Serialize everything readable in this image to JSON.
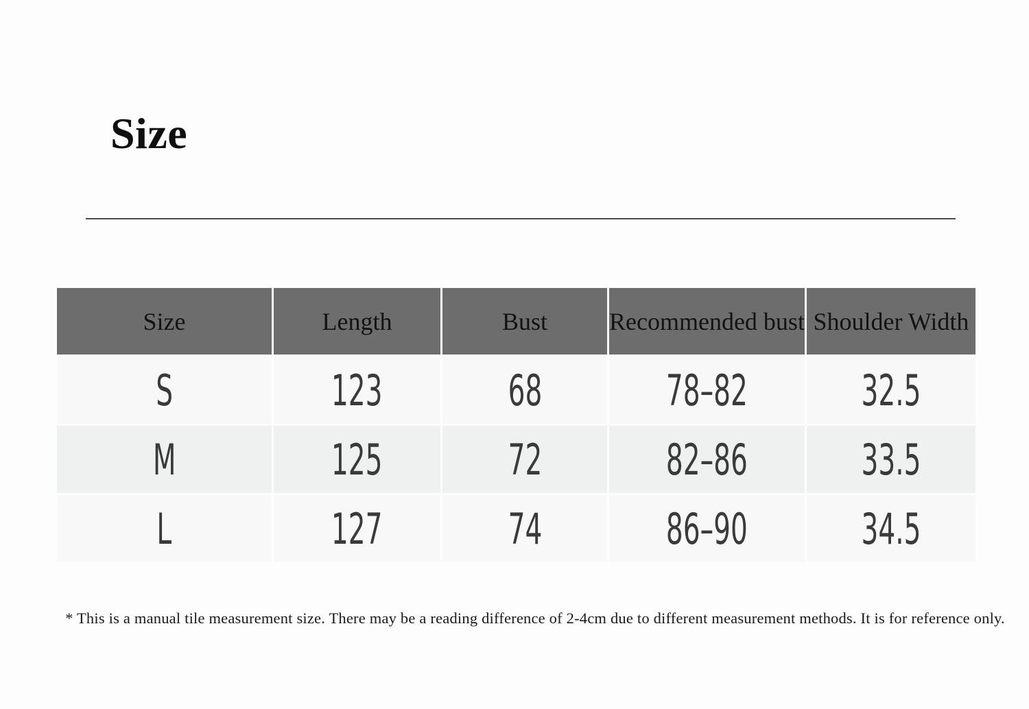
{
  "page": {
    "title": "Size",
    "footnote": "* This is a manual tile measurement size. There may be a reading difference of 2-4cm due to different measurement methods. It is for reference only."
  },
  "size_chart": {
    "headers": [
      "Size",
      "Length",
      "Bust",
      "Recommended bust",
      "Shoulder Width"
    ],
    "rows": [
      [
        "S",
        "123",
        "68",
        "78–82",
        "32.5"
      ],
      [
        "M",
        "125",
        "72",
        "82–86",
        "33.5"
      ],
      [
        "L",
        "127",
        "74",
        "86–90",
        "34.5"
      ]
    ]
  },
  "colors": {
    "header_bg": "#6d6d6d",
    "row_light_bg": "#f8f8f8",
    "row_dark_bg": "#eff0f0",
    "divider": "#4c4c4c",
    "data_text": "#3a3a3a",
    "header_text": "#131313"
  }
}
